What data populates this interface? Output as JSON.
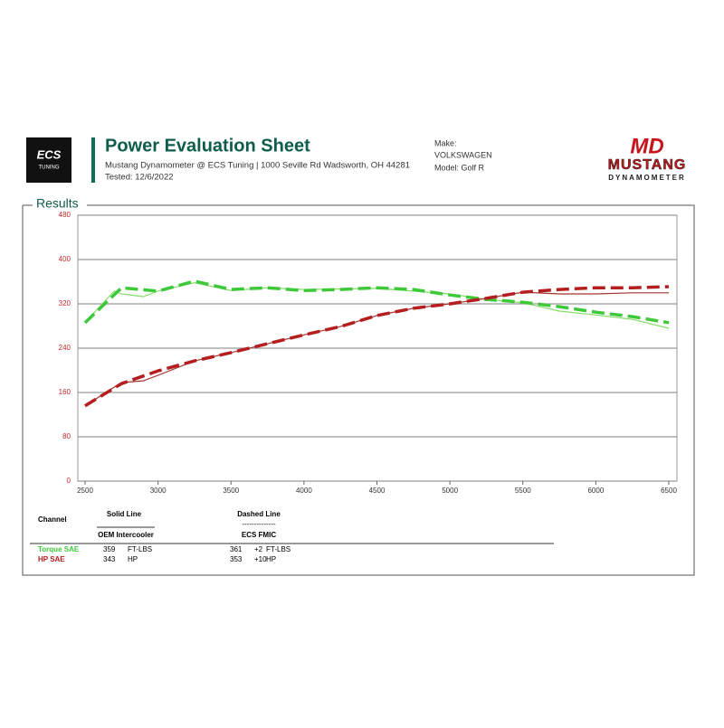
{
  "header": {
    "logo_left": [
      "ECS",
      "TUNING"
    ],
    "title": "Power Evaluation Sheet",
    "subtitle": "Mustang Dynamometer @ ECS Tuning | 1000 Seville Rd Wadsworth, OH 44281",
    "tested": "Tested: 12/6/2022",
    "make_label": "Make:",
    "make": "VOLKSWAGEN",
    "model": "Model: Golf R",
    "logo_right": [
      "MD",
      "MUSTANG",
      "DYNAMOMETER"
    ]
  },
  "section_title": "Results",
  "chart_data": {
    "type": "line",
    "xlim": [
      2500,
      6500
    ],
    "xticks": [
      2500,
      3000,
      3500,
      4000,
      4500,
      5000,
      5500,
      6000,
      6500
    ],
    "ylim": [
      0,
      480
    ],
    "yticks": [
      0,
      80,
      160,
      240,
      320,
      400,
      480
    ],
    "grid": true,
    "series": [
      {
        "name": "Torque SAE",
        "color": "#86dc6a",
        "style": "solid",
        "x": [
          2500,
          2600,
          2700,
          2750,
          2900,
          3000,
          3250,
          3500,
          3750,
          4000,
          4500,
          5000,
          5250,
          5500,
          5750,
          6000,
          6250,
          6500
        ],
        "values": [
          286,
          315,
          343,
          338,
          333,
          343,
          358,
          344,
          349,
          346,
          348,
          338,
          328,
          322,
          307,
          300,
          292,
          276
        ]
      },
      {
        "name": "Torque SAE",
        "color": "#3ec93a",
        "style": "dashed",
        "x": [
          2500,
          2750,
          3000,
          3250,
          3500,
          3750,
          4000,
          4250,
          4500,
          4750,
          5000,
          5250,
          5500,
          5750,
          6000,
          6250,
          6500
        ],
        "values": [
          286,
          349,
          343,
          361,
          346,
          349,
          344,
          346,
          349,
          346,
          336,
          328,
          323,
          315,
          305,
          297,
          286
        ]
      },
      {
        "name": "HP SAE",
        "color": "#a3342f",
        "style": "solid",
        "x": [
          2500,
          2750,
          2900,
          3000,
          3250,
          3500,
          3750,
          4000,
          4250,
          4500,
          4750,
          5000,
          5250,
          5500,
          5750,
          6000,
          6250,
          6500
        ],
        "values": [
          136,
          178,
          181,
          191,
          217,
          232,
          248,
          264,
          279,
          299,
          312,
          320,
          330,
          341,
          338,
          338,
          340,
          340
        ]
      },
      {
        "name": "HP SAE",
        "color": "#b51e1e",
        "style": "dashed",
        "x": [
          2500,
          2750,
          3000,
          3250,
          3500,
          3750,
          4000,
          4250,
          4500,
          4750,
          5000,
          5250,
          5500,
          5750,
          6000,
          6250,
          6500
        ],
        "values": [
          136,
          176,
          199,
          217,
          232,
          248,
          264,
          279,
          299,
          312,
          320,
          330,
          341,
          346,
          349,
          349,
          351
        ]
      }
    ]
  },
  "results_table": {
    "channel": "Channel",
    "solid_line": "Solid Line",
    "solid_name": "OEM Intercooler",
    "dashed_line": "Dashed Line",
    "dashed_rule": "--------------",
    "dashed_name": "ECS FMIC",
    "rows": [
      [
        "Torque SAE",
        359,
        "FT-LBS",
        361,
        "+2",
        "FT-LBS"
      ],
      [
        "HP SAE",
        343,
        "HP",
        353,
        "+10",
        "HP"
      ]
    ]
  }
}
